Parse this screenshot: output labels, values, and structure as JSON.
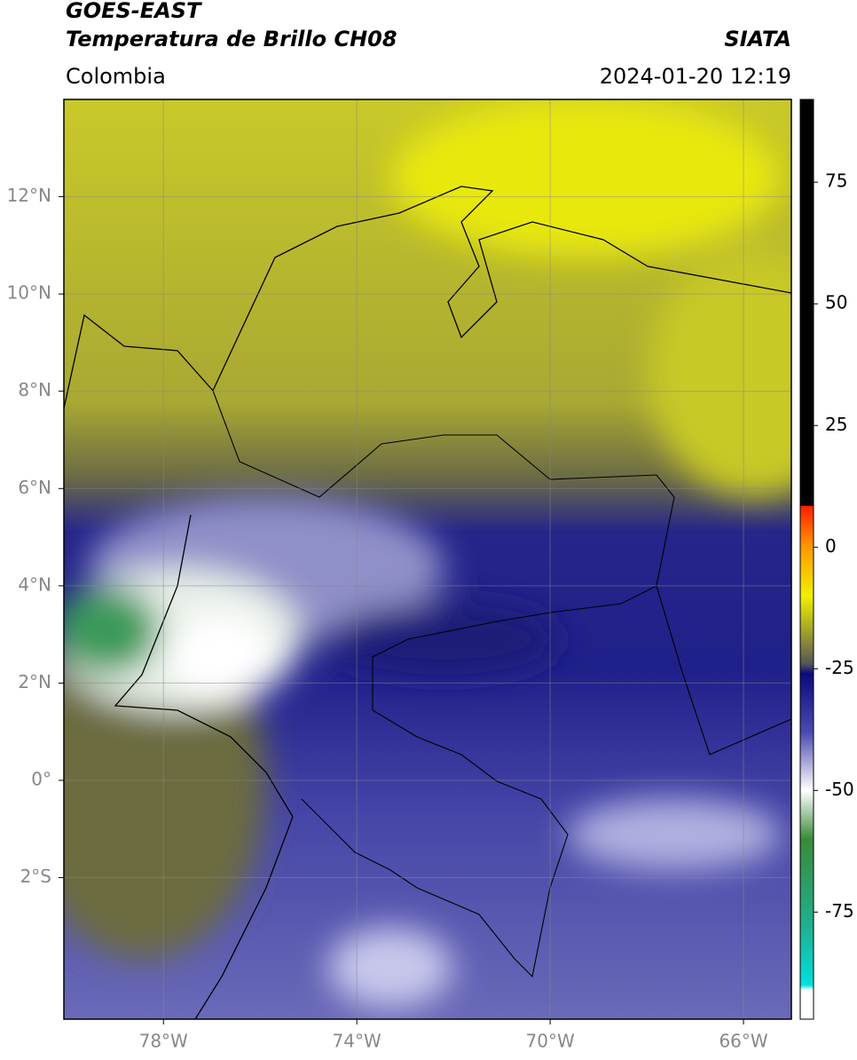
{
  "header": {
    "title": "GOES-EAST",
    "subtitle": "Temperatura de Brillo CH08",
    "source": "SIATA",
    "region": "Colombia",
    "datetime": "2024-01-20 12:19"
  },
  "chart_data": {
    "type": "map",
    "xlim": [
      -80.06,
      -65.01
    ],
    "ylim": [
      -4.91,
      14
    ],
    "xticks": [
      {
        "value": -78,
        "label": "78°W"
      },
      {
        "value": -74,
        "label": "74°W"
      },
      {
        "value": -70,
        "label": "70°W"
      },
      {
        "value": -66,
        "label": "66°W"
      }
    ],
    "yticks": [
      {
        "value": 12,
        "label": "12°N"
      },
      {
        "value": 10,
        "label": "10°N"
      },
      {
        "value": 8,
        "label": "8°N"
      },
      {
        "value": 6,
        "label": "6°N"
      },
      {
        "value": 4,
        "label": "4°N"
      },
      {
        "value": 2,
        "label": "2°N"
      },
      {
        "value": 0,
        "label": "0°"
      },
      {
        "value": -2,
        "label": "2°S"
      }
    ],
    "grid": true,
    "colorbar": {
      "lim": [
        -97,
        92
      ],
      "ticks": [
        75,
        50,
        25,
        0,
        -25,
        -50,
        -75
      ],
      "stops": [
        {
          "value": 92,
          "color": "#000000"
        },
        {
          "value": 8.6,
          "color": "#000000"
        },
        {
          "value": 8.4,
          "color": "#ff2000"
        },
        {
          "value": 0,
          "color": "#ff9900"
        },
        {
          "value": -10,
          "color": "#f0f000"
        },
        {
          "value": -18,
          "color": "#9a9a30"
        },
        {
          "value": -24,
          "color": "#555555"
        },
        {
          "value": -26,
          "color": "#0a0a80"
        },
        {
          "value": -38,
          "color": "#4a4ab0"
        },
        {
          "value": -50,
          "color": "#ffffff"
        },
        {
          "value": -60,
          "color": "#3a8a3a"
        },
        {
          "value": -78,
          "color": "#20b090"
        },
        {
          "value": -90,
          "color": "#00e0e0"
        },
        {
          "value": -91,
          "color": "#ffffff"
        },
        {
          "value": -97,
          "color": "#ffffff"
        }
      ]
    }
  }
}
